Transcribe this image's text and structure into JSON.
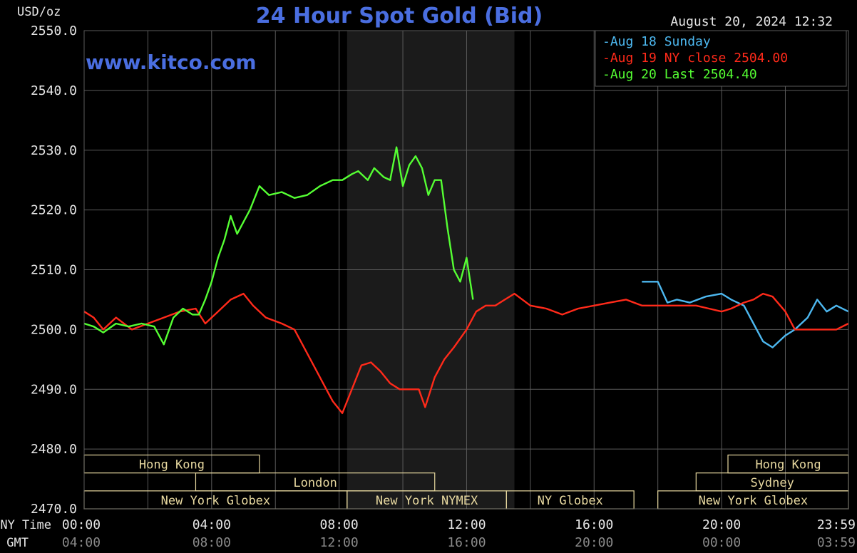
{
  "header": {
    "unit": "USD/oz",
    "title": "24 Hour Spot Gold (Bid)",
    "timestamp": "August 20, 2024 12:32",
    "watermark": "www.kitco.com"
  },
  "legend": [
    {
      "label": "Aug 18 Sunday",
      "color": "#4db8f0"
    },
    {
      "label": "Aug 19 NY close 2504.00",
      "color": "#ff2a1a"
    },
    {
      "label": "Aug 20 Last 2504.40",
      "color": "#55ff33"
    }
  ],
  "axis_labels": {
    "ny_time": "NY Time",
    "gmt": "GMT"
  },
  "sessions": [
    {
      "label": "Hong Kong",
      "row": 0,
      "start": 0,
      "end": 5.5
    },
    {
      "label": "Hong Kong",
      "row": 0,
      "start": 20.2,
      "end": 23.98
    },
    {
      "label": "London",
      "row": 1,
      "start": 3.5,
      "end": 11
    },
    {
      "label": "Sydney",
      "row": 1,
      "start": 19.2,
      "end": 23.98
    },
    {
      "label": "New York Globex",
      "row": 2,
      "start": 0,
      "end": 8.25
    },
    {
      "label": "New York NYMEX",
      "row": 2,
      "start": 8.25,
      "end": 13.25
    },
    {
      "label": "NY Globex",
      "row": 2,
      "start": 13.25,
      "end": 17.25
    },
    {
      "label": "New York Globex",
      "row": 2,
      "start": 18,
      "end": 23.98
    }
  ],
  "colors": {
    "background": "#000000",
    "grid": "#5a5a5a",
    "shade": "#1b1b1b",
    "title": "#4a6ee0",
    "text": "#e6e6e6",
    "gmt_text": "#8a8a8a",
    "session": "#e8d9a0"
  },
  "chart_data": {
    "type": "line",
    "title": "24 Hour Spot Gold (Bid)",
    "ylabel": "USD/oz",
    "ylim": [
      2470,
      2550
    ],
    "xlim": [
      0,
      23.98
    ],
    "yticks": [
      "2550.0",
      "2540.0",
      "2530.0",
      "2520.0",
      "2510.0",
      "2500.0",
      "2490.0",
      "2480.0",
      "2470.0"
    ],
    "xticks_ny": [
      "00:00",
      "04:00",
      "08:00",
      "12:00",
      "16:00",
      "20:00",
      "23:59"
    ],
    "xticks_gmt": [
      "04:00",
      "08:00",
      "12:00",
      "16:00",
      "20:00",
      "00:00",
      "03:59"
    ],
    "shaded_region": [
      8.25,
      13.5
    ],
    "grid": true,
    "legend_position": "top-right",
    "series": [
      {
        "name": "Aug 18 Sunday",
        "color": "#4db8f0",
        "x": [
          17.5,
          18.0,
          18.3,
          18.6,
          19.0,
          19.5,
          20.0,
          20.3,
          20.7,
          21.0,
          21.3,
          21.6,
          22.0,
          22.3,
          22.7,
          23.0,
          23.3,
          23.6,
          23.98
        ],
        "y": [
          2508,
          2508,
          2504.5,
          2505,
          2504.5,
          2505.5,
          2506,
          2505,
          2504,
          2501,
          2498,
          2497,
          2499,
          2500,
          2502,
          2505,
          2503,
          2504,
          2503
        ]
      },
      {
        "name": "Aug 19 NY close 2504.00",
        "color": "#ff2a1a",
        "x": [
          0,
          0.3,
          0.6,
          1.0,
          1.5,
          2.0,
          2.5,
          3.0,
          3.5,
          3.8,
          4.2,
          4.6,
          5.0,
          5.3,
          5.7,
          6.2,
          6.6,
          7.0,
          7.3,
          7.6,
          7.8,
          8.1,
          8.4,
          8.7,
          9.0,
          9.3,
          9.6,
          9.9,
          10.2,
          10.5,
          10.7,
          11.0,
          11.3,
          11.6,
          12.0,
          12.3,
          12.6,
          12.9,
          13.2,
          13.5,
          14.0,
          14.5,
          15.0,
          15.5,
          16.0,
          16.5,
          17.0,
          17.5,
          18.0,
          18.4,
          18.8,
          19.2,
          19.6,
          20.0,
          20.3,
          20.7,
          21.0,
          21.3,
          21.6,
          22.0,
          22.3,
          22.6,
          23.0,
          23.3,
          23.6,
          23.98
        ],
        "y": [
          2503,
          2502,
          2500,
          2502,
          2500,
          2501,
          2502,
          2503,
          2503.5,
          2501,
          2503,
          2505,
          2506,
          2504,
          2502,
          2501,
          2500,
          2496,
          2493,
          2490,
          2488,
          2486,
          2490,
          2494,
          2494.5,
          2493,
          2491,
          2490,
          2490,
          2490,
          2487,
          2492,
          2495,
          2497,
          2500,
          2503,
          2504,
          2504,
          2505,
          2506,
          2504,
          2503.5,
          2502.5,
          2503.5,
          2504,
          2504.5,
          2505,
          2504,
          2504,
          2504,
          2504,
          2504,
          2503.5,
          2503,
          2503.5,
          2504.5,
          2505,
          2506,
          2505.5,
          2503,
          2500,
          2500,
          2500,
          2500,
          2500,
          2501
        ]
      },
      {
        "name": "Aug 20 Last 2504.40",
        "color": "#55ff33",
        "x": [
          0,
          0.3,
          0.6,
          1.0,
          1.4,
          1.8,
          2.2,
          2.5,
          2.8,
          3.1,
          3.4,
          3.6,
          3.8,
          4.0,
          4.2,
          4.4,
          4.6,
          4.8,
          5.0,
          5.2,
          5.5,
          5.8,
          6.2,
          6.6,
          7.0,
          7.4,
          7.8,
          8.1,
          8.4,
          8.6,
          8.9,
          9.1,
          9.4,
          9.6,
          9.8,
          10.0,
          10.2,
          10.4,
          10.6,
          10.8,
          11.0,
          11.2,
          11.4,
          11.6,
          11.8,
          12.0,
          12.2
        ],
        "y": [
          2501,
          2500.5,
          2499.5,
          2501,
          2500.5,
          2501,
          2500.5,
          2497.5,
          2502,
          2503.5,
          2502.5,
          2502.5,
          2505,
          2508,
          2512,
          2515,
          2519,
          2516,
          2518,
          2520,
          2524,
          2522.5,
          2523,
          2522,
          2522.5,
          2524,
          2525,
          2525,
          2526,
          2526.5,
          2525,
          2527,
          2525.5,
          2525,
          2530.5,
          2524,
          2527.5,
          2529,
          2527,
          2522.5,
          2525,
          2525,
          2517,
          2510,
          2508,
          2512,
          2505
        ]
      }
    ]
  }
}
